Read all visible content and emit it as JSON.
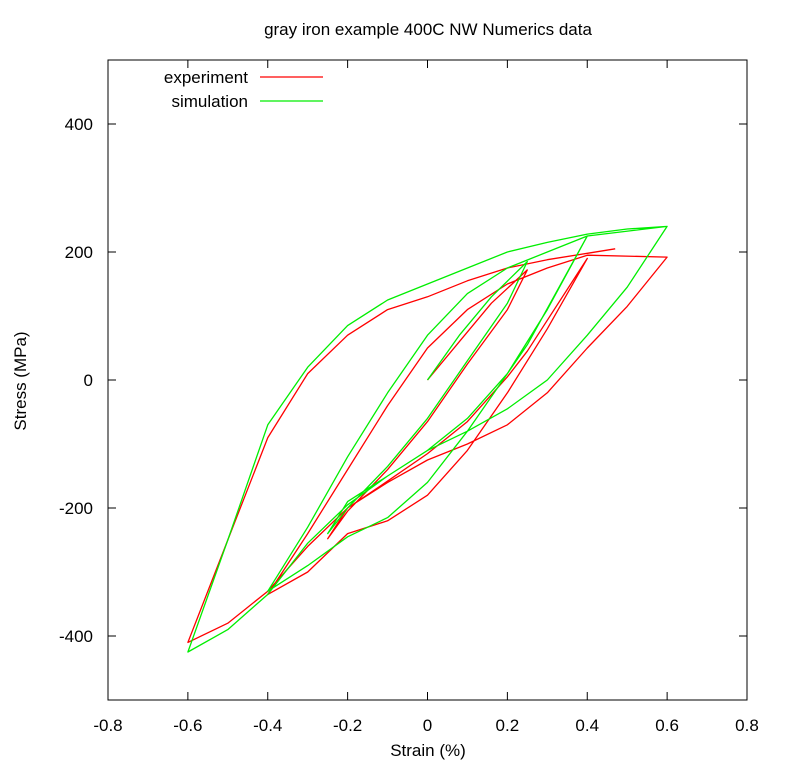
{
  "chart_data": {
    "type": "line",
    "title": "gray iron example 400C NW Numerics data",
    "xlabel": "Strain (%)",
    "ylabel": "Stress (MPa)",
    "xlim": [
      -0.8,
      0.8
    ],
    "ylim": [
      -500,
      500
    ],
    "xticks": [
      -0.8,
      -0.6,
      -0.4,
      -0.2,
      0,
      0.2,
      0.4,
      0.6,
      0.8
    ],
    "xtick_labels": [
      "-0.8",
      "-0.6",
      "-0.4",
      "-0.2",
      "0",
      "0.2",
      "0.4",
      "0.6",
      "0.8"
    ],
    "yticks": [
      -400,
      -200,
      0,
      200,
      400
    ],
    "ytick_labels": [
      "-400",
      "-200",
      "0",
      "200",
      "400"
    ],
    "grid": false,
    "legend_position": "top-left",
    "series": [
      {
        "name": "experiment",
        "color": "#ff0000",
        "x": [
          0,
          0.08,
          0.16,
          0.25,
          0.2,
          0.1,
          0,
          -0.1,
          -0.2,
          -0.25,
          -0.2,
          -0.1,
          0,
          0.1,
          0.2,
          0.25,
          0.4,
          0.3,
          0.2,
          0.1,
          0,
          -0.1,
          -0.2,
          -0.3,
          -0.4,
          -0.3,
          -0.2,
          -0.1,
          0,
          0.1,
          0.2,
          0.3,
          0.4,
          0.6,
          0.5,
          0.4,
          0.3,
          0.2,
          0.1,
          0,
          -0.1,
          -0.2,
          -0.3,
          -0.4,
          -0.5,
          -0.6,
          -0.5,
          -0.4,
          -0.3,
          -0.2,
          -0.1,
          0,
          0.1,
          0.2,
          0.3,
          0.4,
          0.47
        ],
        "y": [
          0,
          60,
          120,
          172,
          110,
          25,
          -65,
          -140,
          -205,
          -248,
          -200,
          -158,
          -115,
          -65,
          5,
          45,
          190,
          80,
          -20,
          -110,
          -180,
          -220,
          -240,
          -300,
          -335,
          -240,
          -140,
          -40,
          50,
          110,
          150,
          175,
          195,
          192,
          115,
          50,
          -20,
          -70,
          -100,
          -125,
          -160,
          -200,
          -260,
          -330,
          -380,
          -410,
          -250,
          -90,
          10,
          70,
          110,
          130,
          155,
          175,
          188,
          198,
          205
        ]
      },
      {
        "name": "simulation",
        "color": "#00ee00",
        "x": [
          0,
          0.08,
          0.16,
          0.25,
          0.2,
          0.1,
          0,
          -0.1,
          -0.2,
          -0.25,
          -0.2,
          -0.1,
          0,
          0.1,
          0.2,
          0.25,
          0.4,
          0.3,
          0.2,
          0.1,
          0,
          -0.1,
          -0.2,
          -0.3,
          -0.4,
          -0.3,
          -0.2,
          -0.1,
          0,
          0.1,
          0.2,
          0.3,
          0.4,
          0.6,
          0.5,
          0.4,
          0.3,
          0.2,
          0.1,
          0,
          -0.1,
          -0.2,
          -0.3,
          -0.4,
          -0.5,
          -0.6,
          -0.5,
          -0.4,
          -0.3,
          -0.2,
          -0.1,
          0,
          0.1,
          0.2,
          0.3,
          0.4,
          0.5,
          0.6
        ],
        "y": [
          0,
          70,
          130,
          185,
          120,
          30,
          -60,
          -135,
          -200,
          -240,
          -190,
          -150,
          -110,
          -60,
          10,
          55,
          225,
          110,
          10,
          -80,
          -160,
          -215,
          -245,
          -290,
          -330,
          -230,
          -120,
          -20,
          70,
          135,
          175,
          200,
          225,
          240,
          145,
          70,
          0,
          -45,
          -80,
          -110,
          -150,
          -195,
          -255,
          -335,
          -390,
          -425,
          -250,
          -70,
          20,
          85,
          125,
          150,
          175,
          200,
          215,
          228,
          236,
          240
        ]
      }
    ]
  }
}
